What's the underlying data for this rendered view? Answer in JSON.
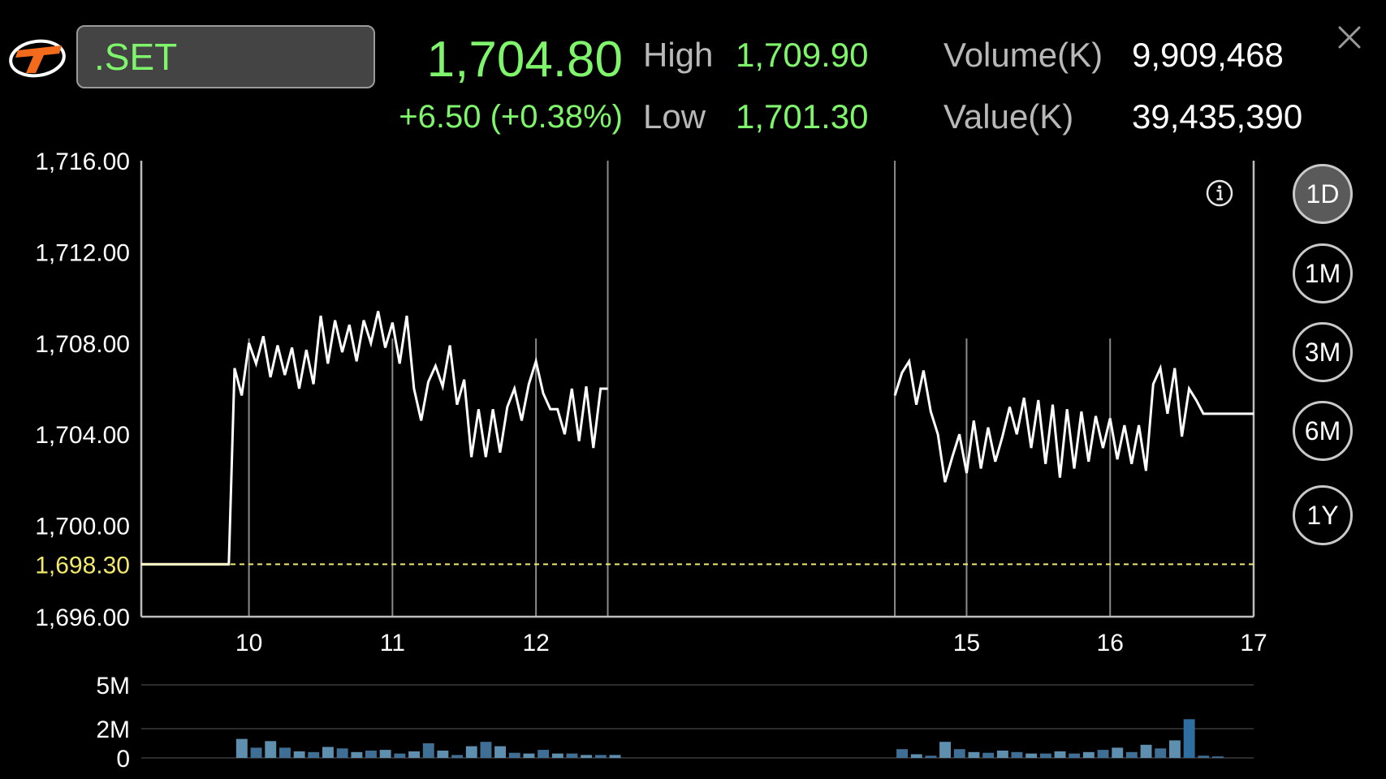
{
  "header": {
    "symbol": ".SET",
    "last_price": "1,704.80",
    "change": "+6.50 (+0.38%)",
    "high_label": "High",
    "high_value": "1,709.90",
    "low_label": "Low",
    "low_value": "1,701.30",
    "volume_label": "Volume(K)",
    "volume_value": "9,909,468",
    "value_label": "Value(K)",
    "value_value": "39,435,390"
  },
  "colors": {
    "up": "#7ef56a",
    "price_line": "#ffffff",
    "prev_close": "#f2e96b",
    "volume_bar": "#5f8fae",
    "volume_bar_dark": "#3f6f95",
    "volume_bar_highlight": "#2f6ea0",
    "grid": "#8a8a8a"
  },
  "icons": {
    "logo": "settrade-logo-icon",
    "close": "close-icon",
    "info": "info-icon"
  },
  "periods": [
    {
      "label": "1D",
      "active": true
    },
    {
      "label": "1M",
      "active": false
    },
    {
      "label": "3M",
      "active": false
    },
    {
      "label": "6M",
      "active": false
    },
    {
      "label": "1Y",
      "active": false
    }
  ],
  "chart_data": [
    {
      "type": "line",
      "title": "",
      "xlabel": "",
      "ylabel": "",
      "x_unit": "hour",
      "xlim": [
        9.25,
        17.0
      ],
      "ylim": [
        1696.0,
        1716.0
      ],
      "x_ticks": [
        10,
        11,
        12,
        15,
        16,
        17
      ],
      "x_tick_labels": [
        "10",
        "11",
        "12",
        "15",
        "16",
        "17"
      ],
      "y_ticks": [
        1696.0,
        1700.0,
        1704.0,
        1708.0,
        1712.0,
        1716.0
      ],
      "y_tick_labels": [
        "1,696.00",
        "1,700.00",
        "1,704.00",
        "1,708.00",
        "1,712.00",
        "1,716.00"
      ],
      "session_breaks": [
        12.5,
        14.5
      ],
      "grid": "vertical",
      "prev_close": {
        "value": 1698.3,
        "label": "1,698.30"
      },
      "series": [
        {
          "segments": [
            [
              [
                9.25,
                1698.3
              ],
              [
                9.86,
                1698.3
              ],
              [
                9.9,
                1706.9
              ],
              [
                9.95,
                1705.7
              ],
              [
                10.0,
                1708.0
              ],
              [
                10.05,
                1707.1
              ],
              [
                10.1,
                1708.3
              ],
              [
                10.15,
                1706.5
              ],
              [
                10.2,
                1707.9
              ],
              [
                10.25,
                1706.6
              ],
              [
                10.3,
                1707.8
              ],
              [
                10.35,
                1706.0
              ],
              [
                10.4,
                1707.7
              ],
              [
                10.45,
                1706.2
              ],
              [
                10.5,
                1709.2
              ],
              [
                10.55,
                1707.1
              ],
              [
                10.6,
                1709.0
              ],
              [
                10.65,
                1707.6
              ],
              [
                10.7,
                1708.8
              ],
              [
                10.75,
                1707.2
              ],
              [
                10.8,
                1709.0
              ],
              [
                10.85,
                1708.0
              ],
              [
                10.9,
                1709.4
              ],
              [
                10.95,
                1707.8
              ],
              [
                11.0,
                1708.9
              ],
              [
                11.05,
                1707.1
              ],
              [
                11.1,
                1709.2
              ],
              [
                11.15,
                1706.0
              ],
              [
                11.2,
                1704.6
              ],
              [
                11.25,
                1706.3
              ],
              [
                11.3,
                1707.0
              ],
              [
                11.35,
                1706.1
              ],
              [
                11.4,
                1707.9
              ],
              [
                11.45,
                1705.3
              ],
              [
                11.5,
                1706.4
              ],
              [
                11.55,
                1703.0
              ],
              [
                11.6,
                1705.1
              ],
              [
                11.65,
                1703.0
              ],
              [
                11.7,
                1705.1
              ],
              [
                11.75,
                1703.2
              ],
              [
                11.8,
                1705.2
              ],
              [
                11.85,
                1706.0
              ],
              [
                11.9,
                1704.6
              ],
              [
                11.95,
                1706.2
              ],
              [
                12.0,
                1707.2
              ],
              [
                12.05,
                1705.8
              ],
              [
                12.1,
                1705.1
              ],
              [
                12.15,
                1705.1
              ],
              [
                12.2,
                1704.0
              ],
              [
                12.25,
                1706.0
              ],
              [
                12.3,
                1703.7
              ],
              [
                12.35,
                1706.1
              ],
              [
                12.4,
                1703.4
              ],
              [
                12.45,
                1706.0
              ],
              [
                12.5,
                1706.0
              ]
            ],
            [
              [
                14.5,
                1705.7
              ],
              [
                14.55,
                1706.7
              ],
              [
                14.6,
                1707.2
              ],
              [
                14.65,
                1705.3
              ],
              [
                14.7,
                1706.8
              ],
              [
                14.75,
                1705.0
              ],
              [
                14.8,
                1704.0
              ],
              [
                14.85,
                1701.9
              ],
              [
                14.9,
                1703.0
              ],
              [
                14.95,
                1704.0
              ],
              [
                15.0,
                1702.3
              ],
              [
                15.05,
                1704.6
              ],
              [
                15.1,
                1702.5
              ],
              [
                15.15,
                1704.3
              ],
              [
                15.2,
                1702.8
              ],
              [
                15.25,
                1703.9
              ],
              [
                15.3,
                1705.2
              ],
              [
                15.35,
                1704.0
              ],
              [
                15.4,
                1705.6
              ],
              [
                15.45,
                1703.4
              ],
              [
                15.5,
                1705.5
              ],
              [
                15.55,
                1702.7
              ],
              [
                15.6,
                1705.3
              ],
              [
                15.65,
                1702.1
              ],
              [
                15.7,
                1705.1
              ],
              [
                15.75,
                1702.5
              ],
              [
                15.8,
                1705.0
              ],
              [
                15.85,
                1702.8
              ],
              [
                15.9,
                1704.8
              ],
              [
                15.95,
                1703.4
              ],
              [
                16.0,
                1704.7
              ],
              [
                16.05,
                1702.9
              ],
              [
                16.1,
                1704.4
              ],
              [
                16.15,
                1702.7
              ],
              [
                16.2,
                1704.4
              ],
              [
                16.25,
                1702.4
              ],
              [
                16.3,
                1706.2
              ],
              [
                16.35,
                1706.9
              ],
              [
                16.4,
                1704.9
              ],
              [
                16.45,
                1706.9
              ],
              [
                16.5,
                1703.9
              ],
              [
                16.55,
                1706.0
              ],
              [
                16.6,
                1705.5
              ],
              [
                16.65,
                1704.9
              ],
              [
                17.0,
                1704.9
              ]
            ]
          ]
        }
      ]
    },
    {
      "type": "bar",
      "title": "",
      "xlabel": "",
      "ylabel": "",
      "x_unit": "hour",
      "ylim": [
        0,
        5000000
      ],
      "y_ticks": [
        0,
        2000000,
        5000000
      ],
      "y_tick_labels": [
        "0",
        "2M",
        "5M"
      ],
      "bar_width_hours": 0.09,
      "bars": [
        [
          9.9,
          1300000,
          0
        ],
        [
          10.0,
          700000,
          1
        ],
        [
          10.1,
          1150000,
          0
        ],
        [
          10.2,
          700000,
          1
        ],
        [
          10.3,
          450000,
          0
        ],
        [
          10.4,
          400000,
          1
        ],
        [
          10.5,
          750000,
          0
        ],
        [
          10.6,
          650000,
          1
        ],
        [
          10.7,
          400000,
          0
        ],
        [
          10.8,
          500000,
          1
        ],
        [
          10.9,
          550000,
          0
        ],
        [
          11.0,
          300000,
          1
        ],
        [
          11.1,
          450000,
          0
        ],
        [
          11.2,
          1000000,
          1
        ],
        [
          11.3,
          500000,
          0
        ],
        [
          11.4,
          200000,
          1
        ],
        [
          11.5,
          800000,
          0
        ],
        [
          11.6,
          1100000,
          1
        ],
        [
          11.7,
          800000,
          0
        ],
        [
          11.8,
          350000,
          1
        ],
        [
          11.9,
          300000,
          0
        ],
        [
          12.0,
          550000,
          1
        ],
        [
          12.1,
          300000,
          0
        ],
        [
          12.2,
          300000,
          1
        ],
        [
          12.3,
          200000,
          0
        ],
        [
          12.4,
          200000,
          1
        ],
        [
          12.5,
          200000,
          0
        ],
        [
          14.5,
          600000,
          1
        ],
        [
          14.6,
          250000,
          0
        ],
        [
          14.7,
          150000,
          1
        ],
        [
          14.8,
          1100000,
          0
        ],
        [
          14.9,
          600000,
          1
        ],
        [
          15.0,
          400000,
          0
        ],
        [
          15.1,
          350000,
          1
        ],
        [
          15.2,
          500000,
          0
        ],
        [
          15.3,
          400000,
          1
        ],
        [
          15.4,
          300000,
          0
        ],
        [
          15.5,
          300000,
          1
        ],
        [
          15.6,
          450000,
          0
        ],
        [
          15.7,
          300000,
          1
        ],
        [
          15.8,
          400000,
          0
        ],
        [
          15.9,
          550000,
          1
        ],
        [
          16.0,
          700000,
          0
        ],
        [
          16.1,
          400000,
          1
        ],
        [
          16.2,
          900000,
          0
        ],
        [
          16.3,
          650000,
          1
        ],
        [
          16.4,
          1200000,
          0
        ],
        [
          16.5,
          2650000,
          2
        ],
        [
          16.6,
          150000,
          1
        ],
        [
          16.7,
          100000,
          1
        ]
      ]
    }
  ]
}
